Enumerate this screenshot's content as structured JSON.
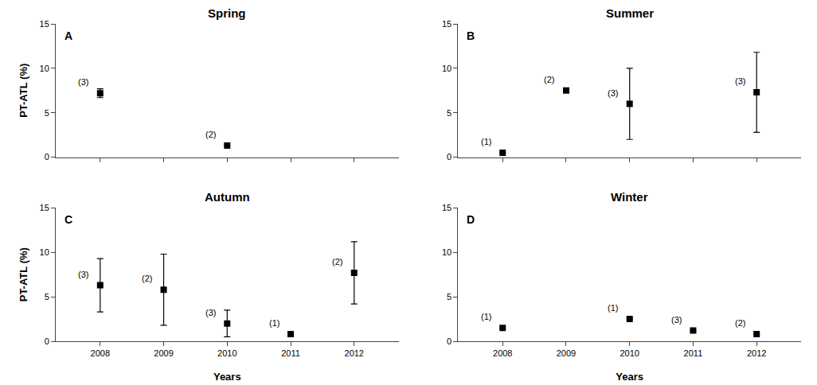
{
  "chart_data": [
    {
      "type": "scatter",
      "title": "Spring",
      "panel_label": "A",
      "x": [
        2008,
        2010
      ],
      "values": [
        7.2,
        1.3
      ],
      "errors": [
        0.5,
        0.0
      ],
      "annotations": [
        "(3)",
        "(2)"
      ],
      "xlim": [
        2007.3,
        2012.7
      ],
      "xticks": [
        2008,
        2009,
        2010,
        2011,
        2012
      ],
      "ylim": [
        0,
        15
      ],
      "yticks": [
        0,
        5,
        10,
        15
      ],
      "ylabel": "PT-ATL (%)",
      "tick_labels": "y",
      "marker": "square",
      "color": "black",
      "grid": false
    },
    {
      "type": "scatter",
      "title": "Summer",
      "panel_label": "B",
      "x": [
        2008,
        2009,
        2010,
        2012
      ],
      "values": [
        0.5,
        7.5,
        6.0,
        7.3
      ],
      "errors": [
        0.0,
        0.0,
        4.0,
        4.5
      ],
      "annotations": [
        "(1)",
        "(2)",
        "(3)",
        "(3)"
      ],
      "xlim": [
        2007.3,
        2012.7
      ],
      "xticks": [
        2008,
        2009,
        2010,
        2011,
        2012
      ],
      "ylim": [
        0,
        15
      ],
      "yticks": [
        0,
        5,
        10,
        15
      ],
      "tick_labels": "y",
      "marker": "square",
      "color": "black",
      "grid": false
    },
    {
      "type": "scatter",
      "title": "Autumn",
      "panel_label": "C",
      "x": [
        2008,
        2009,
        2010,
        2011,
        2012
      ],
      "values": [
        6.3,
        5.8,
        2.0,
        0.8,
        7.7
      ],
      "errors": [
        3.0,
        4.0,
        1.5,
        0.0,
        3.5
      ],
      "annotations": [
        "(3)",
        "(2)",
        "(3)",
        "(1)",
        "(2)"
      ],
      "xlim": [
        2007.3,
        2012.7
      ],
      "xticks": [
        2008,
        2009,
        2010,
        2011,
        2012
      ],
      "ylim": [
        0,
        15
      ],
      "yticks": [
        0,
        5,
        10,
        15
      ],
      "ylabel": "PT-ATL (%)",
      "xlabel": "Years",
      "marker": "square",
      "color": "black",
      "grid": false
    },
    {
      "type": "scatter",
      "title": "Winter",
      "panel_label": "D",
      "x": [
        2008,
        2010,
        2011,
        2012
      ],
      "values": [
        1.5,
        2.5,
        1.2,
        0.8
      ],
      "errors": [
        0.0,
        0.0,
        0.0,
        0.0
      ],
      "annotations": [
        "(1)",
        "(1)",
        "(3)",
        "(2)"
      ],
      "xlim": [
        2007.3,
        2012.7
      ],
      "xticks": [
        2008,
        2009,
        2010,
        2011,
        2012
      ],
      "ylim": [
        0,
        15
      ],
      "yticks": [
        0,
        5,
        10,
        15
      ],
      "xlabel": "Years",
      "marker": "square",
      "color": "black",
      "grid": false
    }
  ]
}
